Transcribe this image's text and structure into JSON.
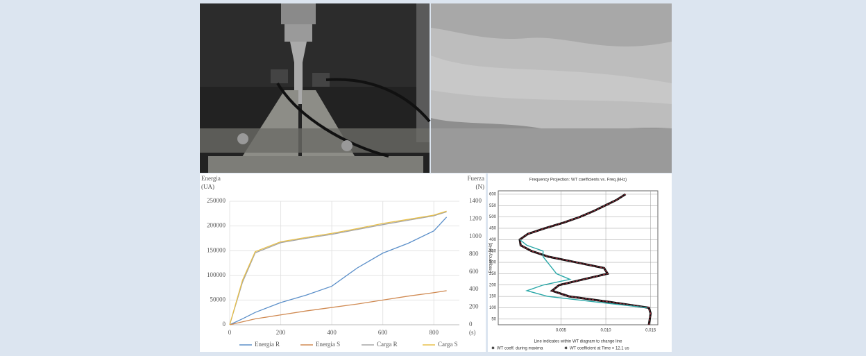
{
  "chart_data": [
    {
      "type": "line",
      "ylabel": [
        "Energia",
        "(UA)"
      ],
      "y2label": [
        "Fuerza",
        "(N)"
      ],
      "xlabel": "(s)",
      "x": [
        0,
        50,
        100,
        200,
        300,
        400,
        500,
        600,
        700,
        800,
        850
      ],
      "xlim": [
        0,
        900
      ],
      "xticks": [
        0,
        200,
        400,
        600,
        800
      ],
      "ylim": [
        0,
        250000
      ],
      "yticks": [
        0,
        50000,
        100000,
        150000,
        200000,
        250000
      ],
      "y2lim": [
        0,
        1400
      ],
      "y2ticks": [
        0,
        200,
        400,
        600,
        800,
        1000,
        1200,
        1400
      ],
      "grid": true,
      "series": [
        {
          "name": "Energia R",
          "color": "#5b8fc9",
          "values": [
            0,
            12000,
            25000,
            45000,
            60000,
            78000,
            115000,
            145000,
            165000,
            190000,
            218000
          ]
        },
        {
          "name": "Energia S",
          "color": "#d08a52",
          "values": [
            0,
            6000,
            12000,
            20000,
            28000,
            35000,
            42000,
            50000,
            58000,
            65000,
            69000
          ]
        },
        {
          "name": "Carga R",
          "color": "#a5a5a5",
          "axis": "y2",
          "values": [
            0,
            480,
            815,
            930,
            980,
            1025,
            1080,
            1135,
            1185,
            1235,
            1280
          ]
        },
        {
          "name": "Carga S",
          "color": "#e8c04a",
          "axis": "y2",
          "values": [
            0,
            504,
            829,
            941,
            990,
            1036,
            1090,
            1148,
            1195,
            1243,
            1288
          ]
        }
      ]
    },
    {
      "type": "line-vertical",
      "title": "Frequency Projection: WT coefficients vs. Freq.(kHz)",
      "ylabel": "Frequency [kHz]",
      "xlabel": "Line indicates within WT diagram to change line",
      "frequency": [
        25,
        50,
        75,
        100,
        125,
        150,
        175,
        200,
        225,
        250,
        275,
        300,
        325,
        350,
        375,
        400,
        425,
        450,
        475,
        500,
        525,
        550,
        575,
        600
      ],
      "ylim": [
        25,
        615
      ],
      "yticks": [
        50,
        100,
        150,
        200,
        250,
        300,
        350,
        400,
        450,
        500,
        550,
        600
      ],
      "xlim": [
        -0.002,
        0.0158
      ],
      "xticks": [
        {
          "value": 0.005,
          "label": "0.005"
        },
        {
          "value": 0.01,
          "label": "0.010"
        },
        {
          "value": 0.015,
          "label": "0.015"
        }
      ],
      "grid": true,
      "series": [
        {
          "color": "#111111",
          "values": [
            0.0148,
            0.0149,
            0.015,
            0.0148,
            0.0105,
            0.0059,
            0.004,
            0.0048,
            0.0075,
            0.0102,
            0.0098,
            0.0067,
            0.0036,
            0.0017,
            0.0005,
            0.0004,
            0.0013,
            0.0032,
            0.0053,
            0.0071,
            0.0086,
            0.0099,
            0.0112,
            0.0122
          ]
        },
        {
          "name": "WT coefficient at Time = 12.1 us",
          "color": "#a03040",
          "dashed": true,
          "values": [
            0.0148,
            0.0149,
            0.015,
            0.0148,
            0.0105,
            0.0059,
            0.004,
            0.0048,
            0.0075,
            0.0102,
            0.0098,
            0.0067,
            0.0036,
            0.0017,
            0.0005,
            0.0004,
            0.0013,
            0.0032,
            0.0053,
            0.0071,
            0.0086,
            0.0099,
            0.0112,
            0.0122
          ]
        },
        {
          "name": "WT coeff. during maxima",
          "color": "#2aa8a8",
          "values": [
            null,
            null,
            null,
            0.0146,
            0.009,
            0.0035,
            0.0012,
            0.003,
            0.006,
            0.0045,
            0.004,
            0.0035,
            0.003,
            0.003,
            0.0012,
            0.0004,
            null,
            null,
            null,
            null,
            null,
            null,
            null,
            null
          ]
        }
      ]
    }
  ]
}
